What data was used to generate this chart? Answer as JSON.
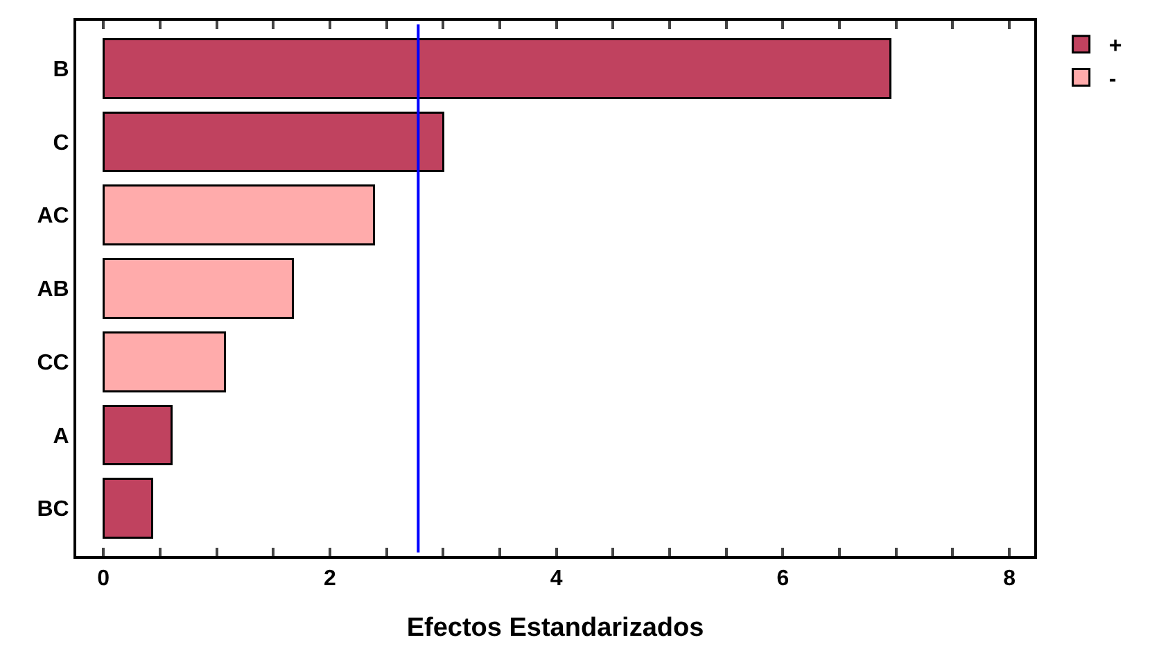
{
  "chart_data": {
    "type": "bar",
    "orientation": "horizontal",
    "stacked": true,
    "xlabel": "Efectos Estandarizados",
    "categories": [
      "B",
      "C",
      "AC",
      "AB",
      "CC",
      "A",
      "BC"
    ],
    "series": [
      {
        "name": "+",
        "color": "#c0425f",
        "values": [
          6.95,
          3.0,
          null,
          null,
          null,
          0.6,
          0.43
        ]
      },
      {
        "name": "-",
        "color": "#ffabab",
        "values": [
          null,
          null,
          2.39,
          1.67,
          1.07,
          null,
          null
        ]
      }
    ],
    "xlim": [
      -0.24,
      8.22
    ],
    "xticks": [
      0,
      {
        "value": 0.5,
        "label": null
      },
      {
        "value": 1,
        "label": null
      },
      {
        "value": 1.5,
        "label": null
      },
      2,
      {
        "value": 2.5,
        "label": null
      },
      {
        "value": 3,
        "label": null
      },
      {
        "value": 3.5,
        "label": null
      },
      4,
      {
        "value": 4.5,
        "label": null
      },
      {
        "value": 5,
        "label": null
      },
      {
        "value": 5.5,
        "label": null
      },
      6,
      {
        "value": 6.5,
        "label": null
      },
      {
        "value": 7,
        "label": null
      },
      {
        "value": 7.5,
        "label": null
      },
      8
    ],
    "ref_lines": [
      {
        "axis": "x",
        "value": 2.78,
        "label": null,
        "color": "#0000ff"
      }
    ],
    "legend": "top right"
  }
}
